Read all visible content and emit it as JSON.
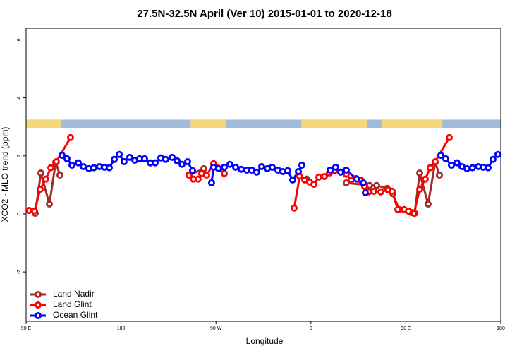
{
  "chart_data": {
    "type": "line",
    "title": "27.5N-32.5N April (Ver 10)   2015-01-01 to 2020-12-18",
    "xlabel": "Longitude",
    "ylabel": "XCO2 - MLO trend (ppm)",
    "xlim": [
      90,
      540
    ],
    "ylim": [
      -3.7,
      6.4
    ],
    "xticks": [
      {
        "value": 90,
        "label": "90 E"
      },
      180,
      {
        "value": 270,
        "label": "90 W"
      },
      {
        "value": 360,
        "label": "0"
      },
      {
        "value": 450,
        "label": "90 E"
      },
      {
        "value": 540,
        "label": "180"
      }
    ],
    "yticks": [
      -2,
      0,
      2,
      4,
      6
    ],
    "legend": "bottom-left",
    "land_mask": {
      "ylim": [
        2.95,
        3.25
      ],
      "ocean_color": "#a3bcdc",
      "land_color": "#f7d77c",
      "land": [
        [
          90,
          123
        ],
        [
          246,
          279
        ],
        [
          351,
          413
        ],
        [
          427,
          484
        ]
      ]
    },
    "series": [
      {
        "name": "Land Nadir",
        "color": "#a52a2a",
        "x": [
          92.7,
          98.7,
          104.0,
          112.1,
          118.1,
          122.1,
          null,
          244.4,
          258.5,
          null,
          356.1,
          null,
          393.5,
          415.6,
          422.3,
          432.3,
          437.7,
          443.7,
          455.1,
          458.4,
          463.1,
          471.1,
          477.8,
          481.8
        ],
        "values": [
          0.12,
          0.02,
          1.41,
          0.34,
          1.78,
          1.34,
          null,
          1.34,
          1.56,
          null,
          1.2,
          null,
          1.07,
          0.98,
          0.98,
          0.88,
          0.7,
          0.15,
          0.05,
          0.02,
          1.41,
          0.34,
          1.78,
          1.34
        ]
      },
      {
        "name": "Land Glint",
        "color": "#ff0000",
        "x": [
          92.7,
          98.0,
          103.4,
          108.7,
          113.4,
          118.7,
          132.1,
          null,
          244.4,
          248.5,
          253.1,
          256.5,
          261.2,
          267.8,
          271.2,
          277.9,
          null,
          344.1,
          349.4,
          354.1,
          358.8,
          362.8,
          367.5,
          372.8,
          377.5,
          382.2,
          388.2,
          393.5,
          398.2,
          402.9,
          407.6,
          410.9,
          414.9,
          419.6,
          426.3,
          433.0,
          437.0,
          442.4,
          448.4,
          452.4,
          457.7,
          463.1,
          468.4,
          473.1,
          477.8,
          491.2
        ],
        "values": [
          0.12,
          0.1,
          0.85,
          1.2,
          1.59,
          1.8,
          2.63,
          null,
          1.34,
          1.2,
          1.2,
          1.39,
          1.34,
          1.73,
          1.6,
          1.39,
          null,
          0.2,
          1.3,
          1.17,
          1.1,
          1.02,
          1.27,
          1.29,
          1.41,
          1.49,
          1.44,
          1.37,
          1.17,
          1.22,
          1.15,
          0.95,
          0.76,
          0.78,
          0.76,
          0.83,
          0.78,
          0.15,
          0.15,
          0.1,
          0.02,
          0.85,
          1.2,
          1.59,
          1.8,
          2.63
        ]
      },
      {
        "name": "Ocean Glint",
        "color": "#0000ff",
        "x": [
          124.1,
          128.8,
          133.5,
          139.5,
          144.2,
          149.5,
          154.2,
          159.5,
          164.2,
          168.9,
          173.6,
          178.3,
          182.9,
          188.3,
          193.0,
          197.6,
          202.3,
          207.7,
          212.4,
          217.7,
          222.4,
          228.4,
          233.1,
          237.8,
          243.1,
          247.8,
          null,
          265.8,
          267.8,
          272.5,
          277.9,
          283.2,
          288.6,
          293.9,
          299.3,
          303.9,
          308.6,
          313.3,
          318.7,
          323.3,
          328.7,
          333.4,
          338.1,
          342.7,
          348.1,
          351.4,
          null,
          378.2,
          383.5,
          388.2,
          393.5,
          403.6,
          409.6,
          411.6,
          null,
          483.1,
          487.8,
          493.2,
          498.5,
          503.2,
          507.9,
          513.2,
          518.6,
          523.3,
          528.0,
          532.6,
          537.3
        ],
        "values": [
          2.02,
          1.9,
          1.68,
          1.76,
          1.63,
          1.56,
          1.59,
          1.63,
          1.61,
          1.59,
          1.88,
          2.05,
          1.8,
          1.95,
          1.85,
          1.9,
          1.9,
          1.76,
          1.76,
          1.93,
          1.88,
          1.95,
          1.83,
          1.71,
          1.8,
          1.49,
          null,
          1.07,
          1.61,
          1.56,
          1.61,
          1.71,
          1.61,
          1.54,
          1.51,
          1.51,
          1.44,
          1.63,
          1.56,
          1.61,
          1.51,
          1.46,
          1.49,
          1.17,
          1.46,
          1.68,
          null,
          1.51,
          1.61,
          1.44,
          1.51,
          1.2,
          1.07,
          0.73,
          null,
          2.02,
          1.9,
          1.68,
          1.76,
          1.63,
          1.56,
          1.59,
          1.63,
          1.61,
          1.59,
          1.88,
          2.05
        ]
      }
    ]
  }
}
